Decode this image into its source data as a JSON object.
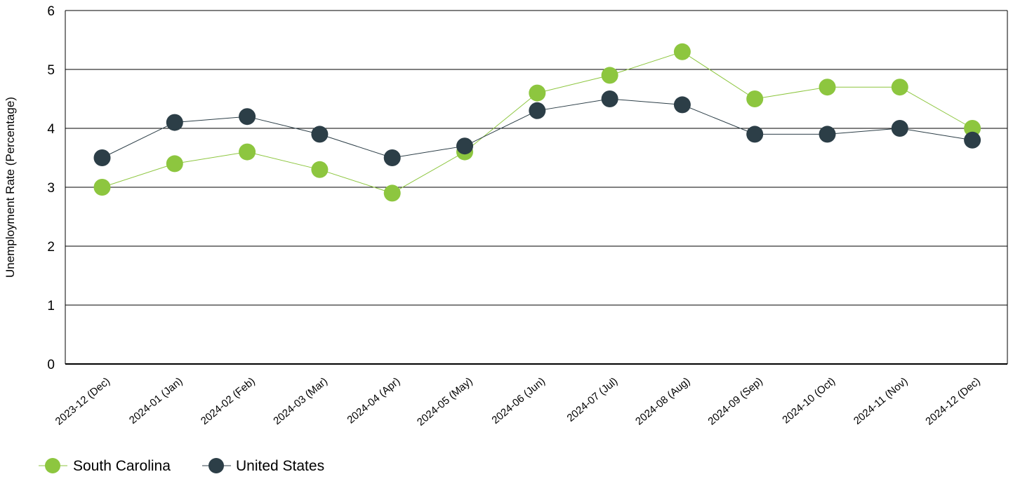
{
  "chart_data": {
    "type": "line",
    "title": "",
    "xlabel": "",
    "ylabel": "Unemployment Rate (Percentage)",
    "ylim": [
      0,
      6
    ],
    "yticks": [
      "0",
      "1",
      "2",
      "3",
      "4",
      "5",
      "6"
    ],
    "grid": "horizontal",
    "legend_position": "bottom-left",
    "categories": [
      "2023-12 (Dec)",
      "2024-01 (Jan)",
      "2024-02 (Feb)",
      "2024-03 (Mar)",
      "2024-04 (Apr)",
      "2024-05 (May)",
      "2024-06 (Jun)",
      "2024-07 (Jul)",
      "2024-08 (Aug)",
      "2024-09 (Sep)",
      "2024-10 (Oct)",
      "2024-11 (Nov)",
      "2024-12 (Dec)"
    ],
    "series": [
      {
        "name": "South Carolina",
        "color": "#8dc63f",
        "values": [
          3.0,
          3.4,
          3.6,
          3.3,
          2.9,
          3.6,
          4.6,
          4.9,
          5.3,
          4.5,
          4.7,
          4.7,
          4.0
        ]
      },
      {
        "name": "United States",
        "color": "#2c3e47",
        "values": [
          3.5,
          4.1,
          4.2,
          3.9,
          3.5,
          3.7,
          4.3,
          4.5,
          4.4,
          3.9,
          3.9,
          4.0,
          3.8
        ]
      }
    ]
  }
}
